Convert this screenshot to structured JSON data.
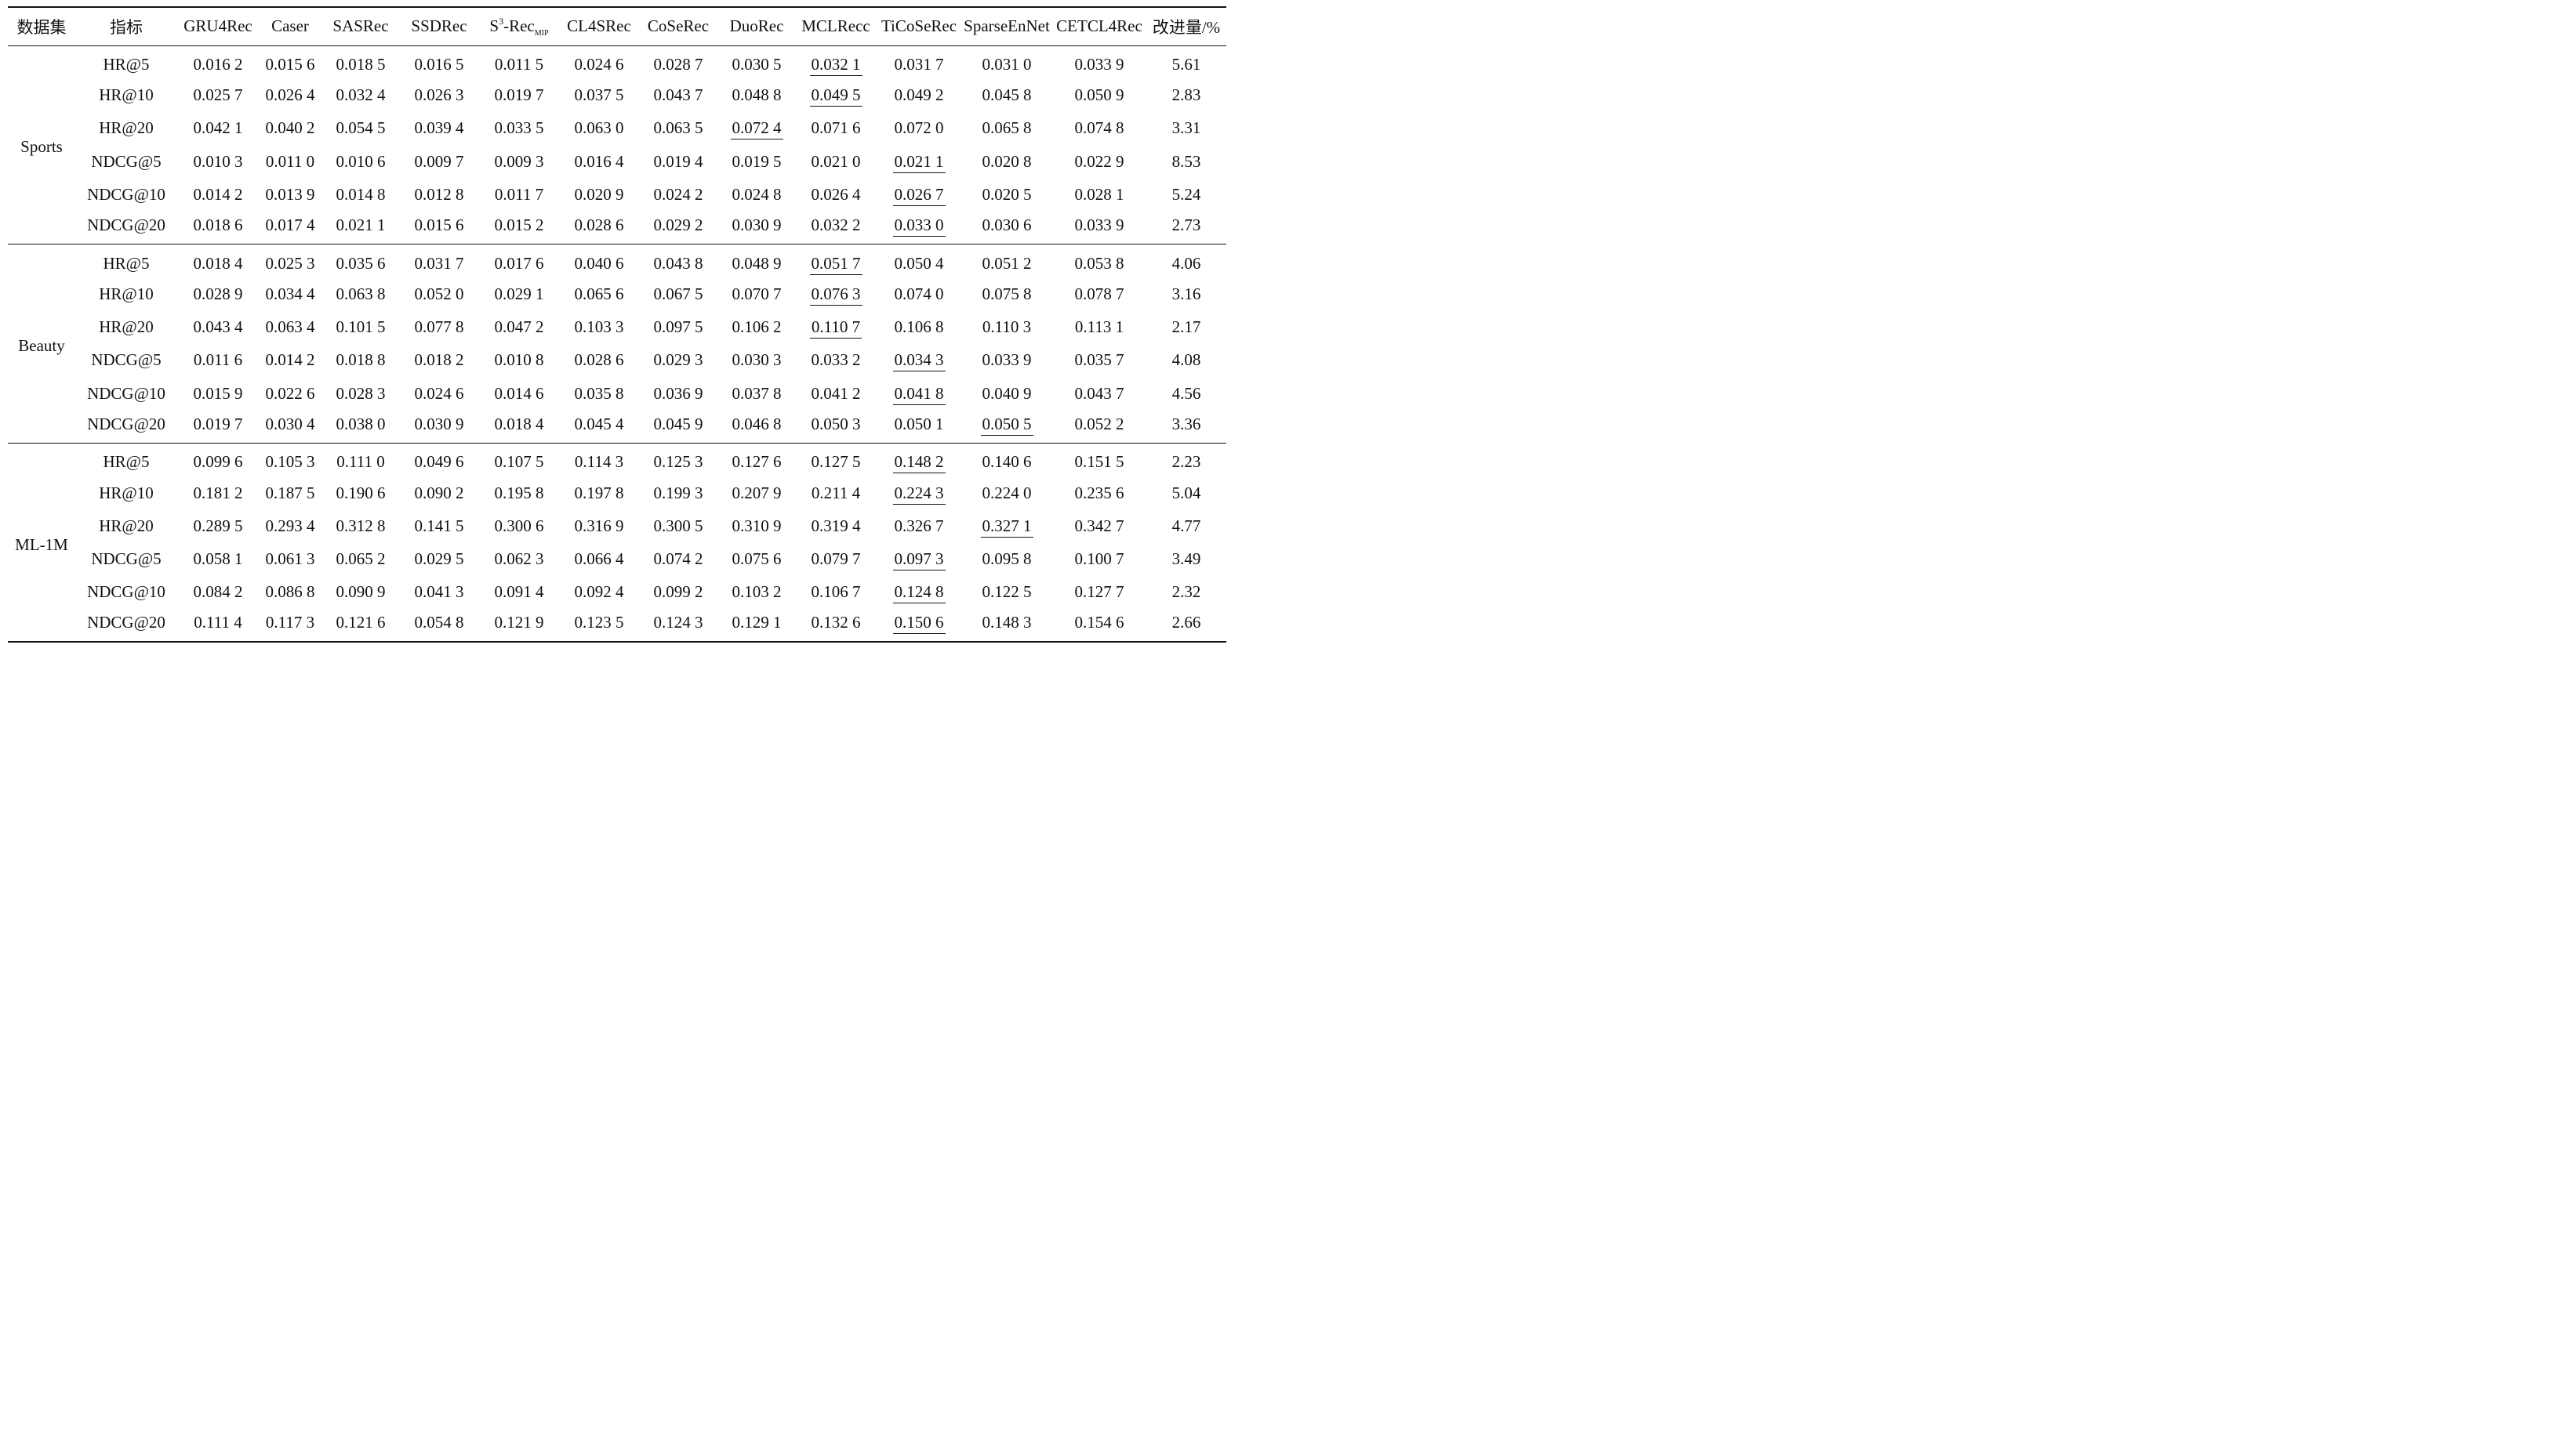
{
  "header": {
    "dataset": "数据集",
    "metric": "指标",
    "models": [
      "GRU4Rec",
      "Caser",
      "SASRec",
      "SSDRec",
      "S3-RecMIP",
      "CL4SRec",
      "CoSeRec",
      "DuoRec",
      "MCLRecc",
      "TiCoSeRec",
      "SparseEnNet",
      "CETCL4Rec"
    ],
    "s3_base": "S",
    "s3_sup": "3",
    "s3_mid": "-Rec",
    "s3_sub": "MIP",
    "improve": "改进量/%"
  },
  "groups": [
    {
      "name": "Sports",
      "rows": [
        {
          "metric": "HR@5",
          "values": [
            "0.016 2",
            "0.015 6",
            "0.018 5",
            "0.016 5",
            "0.011 5",
            "0.024 6",
            "0.028 7",
            "0.030 5",
            "0.032 1",
            "0.031 7",
            "0.031 0",
            "0.033 9"
          ],
          "improve": "5.61",
          "second": 8
        },
        {
          "metric": "HR@10",
          "values": [
            "0.025 7",
            "0.026 4",
            "0.032 4",
            "0.026 3",
            "0.019 7",
            "0.037 5",
            "0.043 7",
            "0.048 8",
            "0.049 5",
            "0.049 2",
            "0.045 8",
            "0.050 9"
          ],
          "improve": "2.83",
          "second": 8
        },
        {
          "metric": "HR@20",
          "values": [
            "0.042 1",
            "0.040 2",
            "0.054 5",
            "0.039 4",
            "0.033 5",
            "0.063 0",
            "0.063 5",
            "0.072 4",
            "0.071 6",
            "0.072 0",
            "0.065 8",
            "0.074 8"
          ],
          "improve": "3.31",
          "second": 7
        },
        {
          "metric": "NDCG@5",
          "values": [
            "0.010 3",
            "0.011 0",
            "0.010 6",
            "0.009 7",
            "0.009 3",
            "0.016 4",
            "0.019 4",
            "0.019 5",
            "0.021 0",
            "0.021 1",
            "0.020 8",
            "0.022 9"
          ],
          "improve": "8.53",
          "second": 9
        },
        {
          "metric": "NDCG@10",
          "values": [
            "0.014 2",
            "0.013 9",
            "0.014 8",
            "0.012 8",
            "0.011 7",
            "0.020 9",
            "0.024 2",
            "0.024 8",
            "0.026 4",
            "0.026 7",
            "0.020 5",
            "0.028 1"
          ],
          "improve": "5.24",
          "second": 9
        },
        {
          "metric": "NDCG@20",
          "values": [
            "0.018 6",
            "0.017 4",
            "0.021 1",
            "0.015 6",
            "0.015 2",
            "0.028 6",
            "0.029 2",
            "0.030 9",
            "0.032 2",
            "0.033 0",
            "0.030 6",
            "0.033 9"
          ],
          "improve": "2.73",
          "second": 9
        }
      ]
    },
    {
      "name": "Beauty",
      "rows": [
        {
          "metric": "HR@5",
          "values": [
            "0.018 4",
            "0.025 3",
            "0.035 6",
            "0.031 7",
            "0.017 6",
            "0.040 6",
            "0.043 8",
            "0.048 9",
            "0.051 7",
            "0.050 4",
            "0.051 2",
            "0.053 8"
          ],
          "improve": "4.06",
          "second": 8
        },
        {
          "metric": "HR@10",
          "values": [
            "0.028 9",
            "0.034 4",
            "0.063 8",
            "0.052 0",
            "0.029 1",
            "0.065 6",
            "0.067 5",
            "0.070 7",
            "0.076 3",
            "0.074 0",
            "0.075 8",
            "0.078 7"
          ],
          "improve": "3.16",
          "second": 8
        },
        {
          "metric": "HR@20",
          "values": [
            "0.043 4",
            "0.063 4",
            "0.101 5",
            "0.077 8",
            "0.047 2",
            "0.103 3",
            "0.097 5",
            "0.106 2",
            "0.110 7",
            "0.106 8",
            "0.110 3",
            "0.113 1"
          ],
          "improve": "2.17",
          "second": 8
        },
        {
          "metric": "NDCG@5",
          "values": [
            "0.011 6",
            "0.014 2",
            "0.018 8",
            "0.018 2",
            "0.010 8",
            "0.028 6",
            "0.029 3",
            "0.030 3",
            "0.033 2",
            "0.034 3",
            "0.033 9",
            "0.035 7"
          ],
          "improve": "4.08",
          "second": 9
        },
        {
          "metric": "NDCG@10",
          "values": [
            "0.015 9",
            "0.022 6",
            "0.028 3",
            "0.024 6",
            "0.014 6",
            "0.035 8",
            "0.036 9",
            "0.037 8",
            "0.041 2",
            "0.041 8",
            "0.040 9",
            "0.043 7"
          ],
          "improve": "4.56",
          "second": 9
        },
        {
          "metric": "NDCG@20",
          "values": [
            "0.019 7",
            "0.030 4",
            "0.038 0",
            "0.030 9",
            "0.018 4",
            "0.045 4",
            "0.045 9",
            "0.046 8",
            "0.050 3",
            "0.050 1",
            "0.050 5",
            "0.052 2"
          ],
          "improve": "3.36",
          "second": 10
        }
      ]
    },
    {
      "name": "ML-1M",
      "rows": [
        {
          "metric": "HR@5",
          "values": [
            "0.099 6",
            "0.105 3",
            "0.111 0",
            "0.049 6",
            "0.107 5",
            "0.114 3",
            "0.125 3",
            "0.127 6",
            "0.127 5",
            "0.148 2",
            "0.140 6",
            "0.151 5"
          ],
          "improve": "2.23",
          "second": 9
        },
        {
          "metric": "HR@10",
          "values": [
            "0.181 2",
            "0.187 5",
            "0.190 6",
            "0.090 2",
            "0.195 8",
            "0.197 8",
            "0.199 3",
            "0.207 9",
            "0.211 4",
            "0.224 3",
            "0.224 0",
            "0.235 6"
          ],
          "improve": "5.04",
          "second": 9
        },
        {
          "metric": "HR@20",
          "values": [
            "0.289 5",
            "0.293 4",
            "0.312 8",
            "0.141 5",
            "0.300 6",
            "0.316 9",
            "0.300 5",
            "0.310 9",
            "0.319 4",
            "0.326 7",
            "0.327 1",
            "0.342 7"
          ],
          "improve": "4.77",
          "second": 10
        },
        {
          "metric": "NDCG@5",
          "values": [
            "0.058 1",
            "0.061 3",
            "0.065 2",
            "0.029 5",
            "0.062 3",
            "0.066 4",
            "0.074 2",
            "0.075 6",
            "0.079 7",
            "0.097 3",
            "0.095 8",
            "0.100 7"
          ],
          "improve": "3.49",
          "second": 9
        },
        {
          "metric": "NDCG@10",
          "values": [
            "0.084 2",
            "0.086 8",
            "0.090 9",
            "0.041 3",
            "0.091 4",
            "0.092 4",
            "0.099 2",
            "0.103 2",
            "0.106 7",
            "0.124 8",
            "0.122 5",
            "0.127 7"
          ],
          "improve": "2.32",
          "second": 9
        },
        {
          "metric": "NDCG@20",
          "values": [
            "0.111 4",
            "0.117 3",
            "0.121 6",
            "0.054 8",
            "0.121 9",
            "0.123 5",
            "0.124 3",
            "0.129 1",
            "0.132 6",
            "0.150 6",
            "0.148 3",
            "0.154 6"
          ],
          "improve": "2.66",
          "second": 9
        }
      ]
    }
  ]
}
